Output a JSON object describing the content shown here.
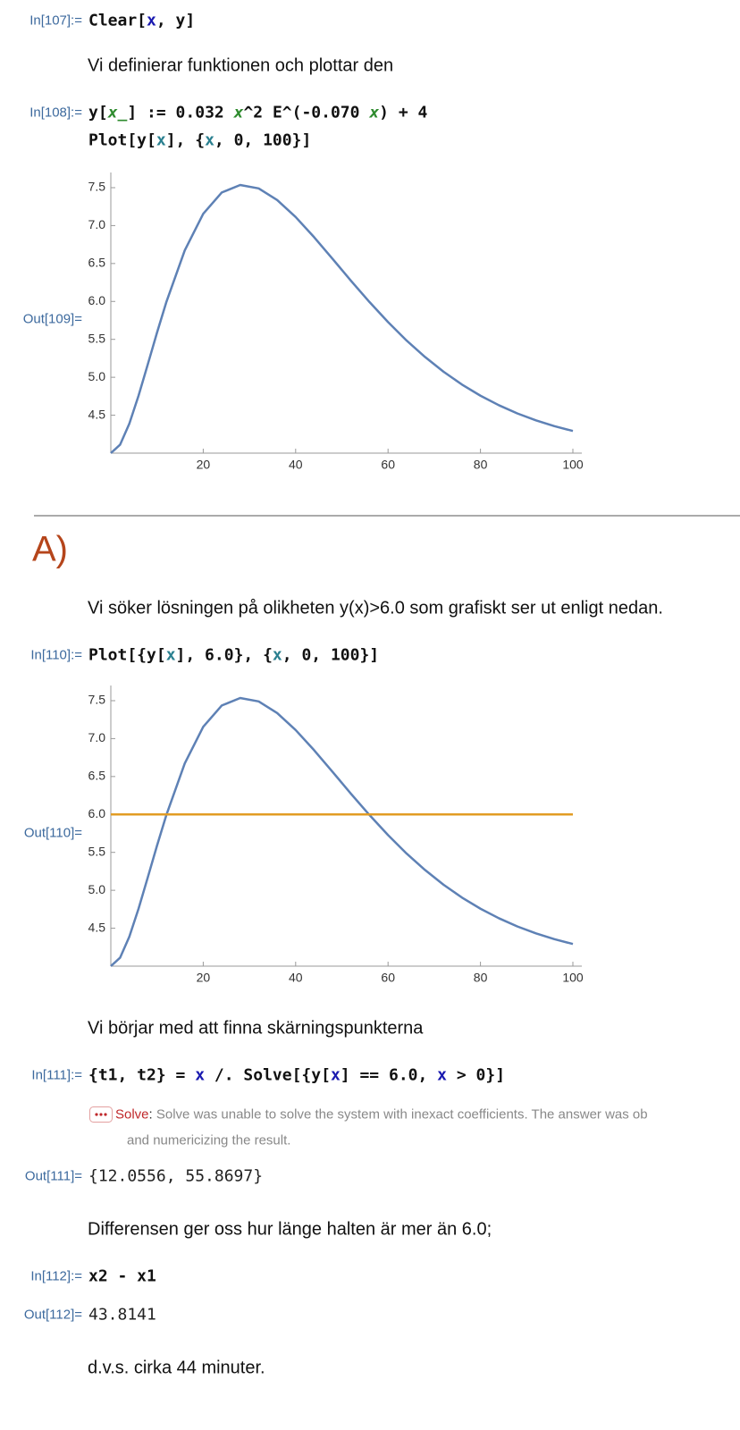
{
  "cells": [
    {
      "label": "In[107]:=",
      "code": [
        "Clear[",
        "x",
        ", y]"
      ]
    },
    {
      "text": "Vi definierar funktionen och plottar den"
    },
    {
      "label": "In[108]:=",
      "code": [
        "y[",
        "x_",
        "] := 0.032 ",
        "x",
        "^2 E^(-0.070 ",
        "x",
        ") + 4"
      ],
      "code_line2": [
        "Plot[y[",
        "x",
        "], {",
        "x",
        ", 0, 100}]"
      ]
    },
    {
      "label": "Out[109]=",
      "plot": {
        "type": "line",
        "x": [
          0,
          2,
          4,
          6,
          8,
          10,
          12,
          16,
          20,
          24,
          28,
          32,
          36,
          40,
          44,
          48,
          52,
          56,
          60,
          64,
          68,
          72,
          76,
          80,
          84,
          88,
          92,
          96,
          100
        ],
        "series": [
          {
            "color": "#5e81b5",
            "values": [
              4,
              4.111,
              4.387,
              4.757,
              5.17,
              5.589,
              5.989,
              6.673,
              7.156,
              7.436,
              7.535,
              7.49,
              7.337,
              7.113,
              6.847,
              6.561,
              6.271,
              5.991,
              5.728,
              5.485,
              5.268,
              5.074,
              4.904,
              4.757,
              4.631,
              4.523,
              4.432,
              4.356,
              4.292
            ]
          }
        ],
        "xlim": [
          0,
          100
        ],
        "ylim": [
          4,
          7.7
        ],
        "xticks": [
          20,
          40,
          60,
          80,
          100
        ],
        "yticks": [
          4.5,
          {
            "value": 5,
            "label": "5.0"
          },
          5.5,
          {
            "value": 6,
            "label": "6.0"
          },
          6.5,
          {
            "value": 7,
            "label": "7.0"
          },
          7.5
        ]
      }
    },
    {
      "heading": "A)"
    },
    {
      "text": "Vi söker lösningen på olikheten y(x)>6.0 som grafiskt ser ut enligt nedan."
    },
    {
      "label": "In[110]:=",
      "code": [
        "Plot[{y[",
        "x",
        "], 6.0}, {",
        "x",
        ", 0, 100}]"
      ]
    },
    {
      "label": "Out[110]=",
      "plot": {
        "type": "line",
        "x": [
          0,
          2,
          4,
          6,
          8,
          10,
          12,
          16,
          20,
          24,
          28,
          32,
          36,
          40,
          44,
          48,
          52,
          56,
          60,
          64,
          68,
          72,
          76,
          80,
          84,
          88,
          92,
          96,
          100
        ],
        "series": [
          {
            "color": "#5e81b5",
            "values": [
              4,
              4.111,
              4.387,
              4.757,
              5.17,
              5.589,
              5.989,
              6.673,
              7.156,
              7.436,
              7.535,
              7.49,
              7.337,
              7.113,
              6.847,
              6.561,
              6.271,
              5.991,
              5.728,
              5.485,
              5.268,
              5.074,
              4.904,
              4.757,
              4.631,
              4.523,
              4.432,
              4.356,
              4.292
            ]
          },
          {
            "color": "#e19c24",
            "x": [
              0,
              100
            ],
            "values": [
              6,
              6
            ]
          }
        ],
        "xlim": [
          0,
          100
        ],
        "ylim": [
          4,
          7.7
        ],
        "xticks": [
          20,
          40,
          60,
          80,
          100
        ],
        "yticks": [
          4.5,
          {
            "value": 5,
            "label": "5.0"
          },
          5.5,
          {
            "value": 6,
            "label": "6.0"
          },
          6.5,
          {
            "value": 7,
            "label": "7.0"
          },
          7.5
        ]
      }
    },
    {
      "text": "Vi börjar med att finna skärningspunkterna"
    },
    {
      "label": "In[111]:=",
      "code": [
        "{t1, t2} = ",
        "x",
        " /. Solve[{y[",
        "x",
        "] == 6.0, ",
        "x",
        " > 0}]"
      ],
      "message": {
        "symbol": "Solve",
        "separator": ":",
        "text": "Solve was unable to solve the system with inexact coefficients. The answer was ob",
        "text2": "and numericizing the result."
      }
    },
    {
      "label": "Out[111]=",
      "output": "{12.0556, 55.8697}"
    },
    {
      "text": "Differensen ger oss hur länge halten är mer än 6.0;"
    },
    {
      "label": "In[112]:=",
      "code": [
        "x2 - x1"
      ]
    },
    {
      "label": "Out[112]=",
      "output": "43.8141"
    },
    {
      "text": "d.v.s. cirka 44 minuter."
    }
  ]
}
